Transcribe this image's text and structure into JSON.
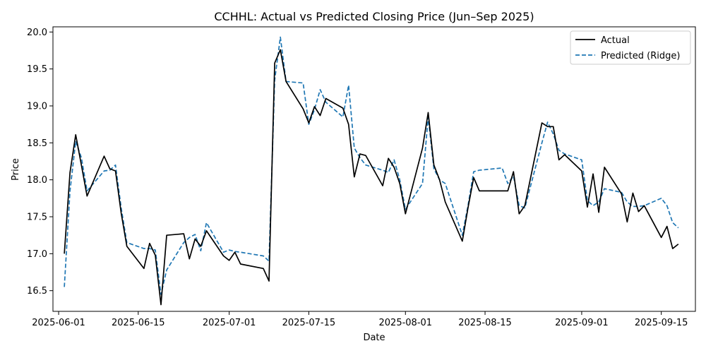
{
  "chart_data": {
    "type": "line",
    "title": "CCHHL: Actual vs Predicted Closing Price (Jun–Sep 2025)",
    "xlabel": "Date",
    "ylabel": "Price",
    "x_ticks": [
      "2025-06-01",
      "2025-06-15",
      "2025-07-01",
      "2025-07-15",
      "2025-08-01",
      "2025-08-15",
      "2025-09-01",
      "2025-09-15"
    ],
    "y_ticks": [
      "16.5",
      "17.0",
      "17.5",
      "18.0",
      "18.5",
      "19.0",
      "19.5",
      "20.0"
    ],
    "xlim": [
      "2025-05-31",
      "2025-09-21"
    ],
    "ylim": [
      16.22,
      20.07
    ],
    "grid": false,
    "legend_position": "top-right",
    "series": [
      {
        "name": "Actual",
        "color": "#000000",
        "style": "solid",
        "points": [
          [
            "2025-06-02",
            17.0
          ],
          [
            "2025-06-03",
            18.1
          ],
          [
            "2025-06-04",
            18.61
          ],
          [
            "2025-06-05",
            18.2
          ],
          [
            "2025-06-06",
            17.78
          ],
          [
            "2025-06-09",
            18.32
          ],
          [
            "2025-06-10",
            18.15
          ],
          [
            "2025-06-11",
            18.12
          ],
          [
            "2025-06-12",
            17.55
          ],
          [
            "2025-06-13",
            17.1
          ],
          [
            "2025-06-16",
            16.8
          ],
          [
            "2025-06-17",
            17.14
          ],
          [
            "2025-06-18",
            16.98
          ],
          [
            "2025-06-19",
            16.31
          ],
          [
            "2025-06-20",
            17.25
          ],
          [
            "2025-06-23",
            17.27
          ],
          [
            "2025-06-24",
            16.93
          ],
          [
            "2025-06-25",
            17.2
          ],
          [
            "2025-06-26",
            17.1
          ],
          [
            "2025-06-27",
            17.31
          ],
          [
            "2025-06-30",
            16.97
          ],
          [
            "2025-07-01",
            16.91
          ],
          [
            "2025-07-02",
            17.02
          ],
          [
            "2025-07-03",
            16.86
          ],
          [
            "2025-07-07",
            16.8
          ],
          [
            "2025-07-08",
            16.63
          ],
          [
            "2025-07-09",
            19.58
          ],
          [
            "2025-07-10",
            19.76
          ],
          [
            "2025-07-11",
            19.33
          ],
          [
            "2025-07-14",
            18.96
          ],
          [
            "2025-07-15",
            18.77
          ],
          [
            "2025-07-16",
            18.99
          ],
          [
            "2025-07-17",
            18.87
          ],
          [
            "2025-07-18",
            19.1
          ],
          [
            "2025-07-21",
            18.97
          ],
          [
            "2025-07-22",
            18.75
          ],
          [
            "2025-07-23",
            18.04
          ],
          [
            "2025-07-24",
            18.35
          ],
          [
            "2025-07-25",
            18.33
          ],
          [
            "2025-07-28",
            17.92
          ],
          [
            "2025-07-29",
            18.29
          ],
          [
            "2025-07-30",
            18.17
          ],
          [
            "2025-07-31",
            17.95
          ],
          [
            "2025-08-01",
            17.54
          ],
          [
            "2025-08-04",
            18.43
          ],
          [
            "2025-08-05",
            18.91
          ],
          [
            "2025-08-06",
            18.2
          ],
          [
            "2025-08-07",
            18.0
          ],
          [
            "2025-08-08",
            17.7
          ],
          [
            "2025-08-11",
            17.17
          ],
          [
            "2025-08-12",
            17.62
          ],
          [
            "2025-08-13",
            18.03
          ],
          [
            "2025-08-14",
            17.85
          ],
          [
            "2025-08-18",
            17.85
          ],
          [
            "2025-08-19",
            17.85
          ],
          [
            "2025-08-20",
            18.11
          ],
          [
            "2025-08-21",
            17.54
          ],
          [
            "2025-08-22",
            17.65
          ],
          [
            "2025-08-25",
            18.77
          ],
          [
            "2025-08-26",
            18.72
          ],
          [
            "2025-08-27",
            18.72
          ],
          [
            "2025-08-28",
            18.27
          ],
          [
            "2025-08-29",
            18.34
          ],
          [
            "2025-09-01",
            18.12
          ],
          [
            "2025-09-02",
            17.63
          ],
          [
            "2025-09-03",
            18.08
          ],
          [
            "2025-09-04",
            17.56
          ],
          [
            "2025-09-05",
            18.17
          ],
          [
            "2025-09-08",
            17.81
          ],
          [
            "2025-09-09",
            17.43
          ],
          [
            "2025-09-10",
            17.82
          ],
          [
            "2025-09-11",
            17.57
          ],
          [
            "2025-09-12",
            17.65
          ],
          [
            "2025-09-15",
            17.22
          ],
          [
            "2025-09-16",
            17.37
          ],
          [
            "2025-09-17",
            17.07
          ],
          [
            "2025-09-18",
            17.13
          ]
        ]
      },
      {
        "name": "Predicted (Ridge)",
        "color": "#1f77b4",
        "style": "dashed",
        "points": [
          [
            "2025-06-02",
            16.55
          ],
          [
            "2025-06-03",
            17.85
          ],
          [
            "2025-06-04",
            18.52
          ],
          [
            "2025-06-05",
            18.3
          ],
          [
            "2025-06-06",
            17.85
          ],
          [
            "2025-06-09",
            18.12
          ],
          [
            "2025-06-10",
            18.13
          ],
          [
            "2025-06-11",
            18.2
          ],
          [
            "2025-06-12",
            17.62
          ],
          [
            "2025-06-13",
            17.15
          ],
          [
            "2025-06-16",
            17.07
          ],
          [
            "2025-06-17",
            17.07
          ],
          [
            "2025-06-18",
            17.05
          ],
          [
            "2025-06-19",
            16.45
          ],
          [
            "2025-06-20",
            16.78
          ],
          [
            "2025-06-23",
            17.15
          ],
          [
            "2025-06-24",
            17.22
          ],
          [
            "2025-06-25",
            17.26
          ],
          [
            "2025-06-26",
            17.04
          ],
          [
            "2025-06-27",
            17.42
          ],
          [
            "2025-06-30",
            17.02
          ],
          [
            "2025-07-01",
            17.05
          ],
          [
            "2025-07-02",
            17.03
          ],
          [
            "2025-07-03",
            17.02
          ],
          [
            "2025-07-07",
            16.97
          ],
          [
            "2025-07-08",
            16.9
          ],
          [
            "2025-07-09",
            19.35
          ],
          [
            "2025-07-10",
            19.93
          ],
          [
            "2025-07-11",
            19.33
          ],
          [
            "2025-07-14",
            19.31
          ],
          [
            "2025-07-15",
            18.75
          ],
          [
            "2025-07-16",
            18.95
          ],
          [
            "2025-07-17",
            19.22
          ],
          [
            "2025-07-18",
            19.05
          ],
          [
            "2025-07-21",
            18.85
          ],
          [
            "2025-07-22",
            19.28
          ],
          [
            "2025-07-23",
            18.43
          ],
          [
            "2025-07-24",
            18.3
          ],
          [
            "2025-07-25",
            18.2
          ],
          [
            "2025-07-28",
            18.13
          ],
          [
            "2025-07-29",
            18.1
          ],
          [
            "2025-07-30",
            18.27
          ],
          [
            "2025-07-31",
            18.0
          ],
          [
            "2025-08-01",
            17.6
          ],
          [
            "2025-08-04",
            17.95
          ],
          [
            "2025-08-05",
            18.85
          ],
          [
            "2025-08-06",
            18.15
          ],
          [
            "2025-08-07",
            18.0
          ],
          [
            "2025-08-08",
            17.95
          ],
          [
            "2025-08-11",
            17.25
          ],
          [
            "2025-08-12",
            17.65
          ],
          [
            "2025-08-13",
            18.11
          ],
          [
            "2025-08-14",
            18.13
          ],
          [
            "2025-08-18",
            18.16
          ],
          [
            "2025-08-19",
            17.95
          ],
          [
            "2025-08-20",
            18.05
          ],
          [
            "2025-08-21",
            17.65
          ],
          [
            "2025-08-22",
            17.62
          ],
          [
            "2025-08-25",
            18.5
          ],
          [
            "2025-08-26",
            18.78
          ],
          [
            "2025-08-27",
            18.62
          ],
          [
            "2025-08-28",
            18.4
          ],
          [
            "2025-08-29",
            18.35
          ],
          [
            "2025-09-01",
            18.27
          ],
          [
            "2025-09-02",
            17.72
          ],
          [
            "2025-09-03",
            17.65
          ],
          [
            "2025-09-04",
            17.7
          ],
          [
            "2025-09-05",
            17.88
          ],
          [
            "2025-09-08",
            17.83
          ],
          [
            "2025-09-09",
            17.7
          ],
          [
            "2025-09-10",
            17.64
          ],
          [
            "2025-09-11",
            17.64
          ],
          [
            "2025-09-12",
            17.65
          ],
          [
            "2025-09-15",
            17.75
          ],
          [
            "2025-09-16",
            17.65
          ],
          [
            "2025-09-17",
            17.42
          ],
          [
            "2025-09-18",
            17.35
          ]
        ]
      }
    ]
  }
}
